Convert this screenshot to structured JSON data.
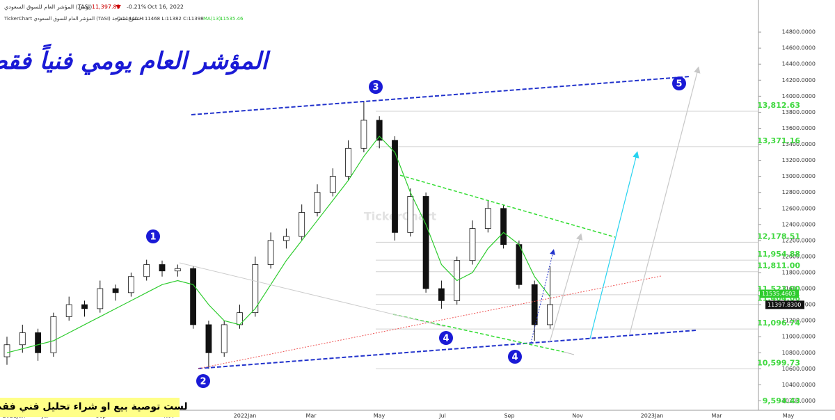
{
  "header": {
    "name": "المؤشر العام للسوق السعودي (TASI)",
    "period": "يومي",
    "price": "11,397.83",
    "change": "-0.21%",
    "date": "Oct 16, 2022"
  },
  "info_line": {
    "source": "TickerChart المؤشر العام للسوق السعودي (TASI) شموع متعرجة",
    "ohlc": "O:11440 H:11468 L:11382 C:11398",
    "ma": "MA(13)",
    "ma_value": "11535.46"
  },
  "chart_data": {
    "type": "candlestick",
    "ylim": [
      10100,
      15200
    ],
    "yticks": [
      {
        "value": 10200,
        "label": "10200.0000"
      },
      {
        "value": 10400,
        "label": "10400.0000"
      },
      {
        "value": 10600,
        "label": "10600.0000"
      },
      {
        "value": 10800,
        "label": "10800.0000"
      },
      {
        "value": 11000,
        "label": "11000.0000"
      },
      {
        "value": 11200,
        "label": "11200.0000"
      },
      {
        "value": 11400,
        "label": "11400.0000"
      },
      {
        "value": 11600,
        "label": "11600.0000"
      },
      {
        "value": 11800,
        "label": "11800.0000"
      },
      {
        "value": 12000,
        "label": "12000.0000"
      },
      {
        "value": 12200,
        "label": "12200.0000"
      },
      {
        "value": 12400,
        "label": "12400.0000"
      },
      {
        "value": 12600,
        "label": "12600.0000"
      },
      {
        "value": 12800,
        "label": "12800.0000"
      },
      {
        "value": 13000,
        "label": "13000.0000"
      },
      {
        "value": 13200,
        "label": "13200.0000"
      },
      {
        "value": 13400,
        "label": "13400.0000"
      },
      {
        "value": 13600,
        "label": "13600.0000"
      },
      {
        "value": 13800,
        "label": "13800.0000"
      },
      {
        "value": 14000,
        "label": "14000.0000"
      },
      {
        "value": 14200,
        "label": "14200.0000"
      },
      {
        "value": 14400,
        "label": "14400.0000"
      },
      {
        "value": 14600,
        "label": "14600.0000"
      },
      {
        "value": 14800,
        "label": "14800.0000"
      }
    ],
    "x_labels": [
      "2021Jun",
      "Jul",
      "Sep",
      "Nov",
      "2022Jan",
      "Mar",
      "May",
      "Jul",
      "Sep",
      "Nov",
      "2023Jan",
      "Mar",
      "May"
    ],
    "candles": {
      "open": [
        10750,
        10900,
        11050,
        10800,
        11250,
        11400,
        11350,
        11600,
        11550,
        11750,
        11900,
        11820,
        11850,
        11150,
        10800,
        11150,
        11300,
        11900,
        12200,
        12250,
        12550,
        12800,
        13000,
        13350,
        13700,
        13450,
        12300,
        12750,
        11600,
        11450,
        11950,
        12350,
        12600,
        12150,
        11650,
        11150
      ],
      "high": [
        11000,
        11150,
        11100,
        11300,
        11500,
        11450,
        11700,
        11650,
        11800,
        11960,
        11950,
        11900,
        11880,
        11200,
        11200,
        11400,
        12000,
        12300,
        12350,
        12650,
        12900,
        13100,
        13450,
        13940,
        13750,
        13500,
        12850,
        12800,
        11700,
        12000,
        12450,
        12700,
        12650,
        12200,
        11700,
        11880
      ],
      "low": [
        10650,
        10800,
        10700,
        10750,
        11200,
        11250,
        11300,
        11450,
        11500,
        11700,
        11750,
        11750,
        11100,
        10600,
        10750,
        11100,
        11250,
        11850,
        12100,
        12200,
        12500,
        12750,
        12950,
        13300,
        13350,
        12200,
        12250,
        11550,
        11350,
        11400,
        11900,
        12300,
        12100,
        11600,
        10950,
        11100
      ],
      "close": [
        10900,
        11050,
        10800,
        11250,
        11400,
        11350,
        11600,
        11550,
        11750,
        11900,
        11820,
        11850,
        11150,
        10800,
        11150,
        11300,
        11900,
        12200,
        12250,
        12550,
        12800,
        13000,
        13350,
        13700,
        13450,
        12300,
        12750,
        11600,
        11450,
        11950,
        12350,
        12600,
        12150,
        11650,
        11150,
        11400
      ]
    },
    "ma": {
      "name": "MA(13)",
      "color": "#2ecc2e",
      "values": [
        10800,
        10850,
        10900,
        10950,
        11050,
        11150,
        11250,
        11350,
        11450,
        11550,
        11650,
        11700,
        11650,
        11400,
        11200,
        11150,
        11350,
        11650,
        11950,
        12200,
        12450,
        12700,
        12950,
        13250,
        13500,
        13300,
        12800,
        12400,
        11900,
        11700,
        11800,
        12100,
        12300,
        12150,
        11750,
        11500
      ]
    },
    "levels": [
      {
        "value": 13812.63,
        "label": "13,812.63"
      },
      {
        "value": 13371.16,
        "label": "13,371.16"
      },
      {
        "value": 12178.51,
        "label": "12,178.51"
      },
      {
        "value": 11954.88,
        "label": "11,954.88"
      },
      {
        "value": 11811.0,
        "label": "11,811.00"
      },
      {
        "value": 11523.0,
        "label": "11,523.00"
      },
      {
        "value": 11404.06,
        "label": "11,404.06"
      },
      {
        "value": 11096.74,
        "label": "11,096.74"
      },
      {
        "value": 10599.73,
        "label": "10,599.73"
      },
      {
        "value": 9594.43,
        "label": "9,594.43"
      }
    ],
    "ma_last": {
      "value": 11535.4603,
      "label": "11535.4603"
    },
    "last_price": {
      "value": 11397.83,
      "label": "11397.8300"
    }
  },
  "annotations": {
    "title": "المؤشر العام يومي فنياً فقط",
    "waves": [
      "1",
      "2",
      "3",
      "4",
      "4",
      "5"
    ],
    "disclaimer": "لست توصية بيع او شراء تحليل فني فقط",
    "watermark": "TickerChart"
  }
}
